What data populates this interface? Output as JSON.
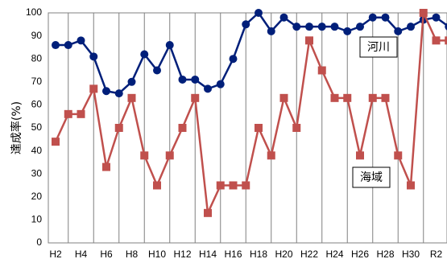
{
  "chart_data": {
    "type": "line",
    "ylabel": "達成率(%)",
    "ylim": [
      0,
      100
    ],
    "y_ticks": [
      0,
      10,
      20,
      30,
      40,
      50,
      60,
      70,
      80,
      90,
      100
    ],
    "x_tick_labels": [
      "H2",
      "H4",
      "H6",
      "H8",
      "H10",
      "H12",
      "H14",
      "H16",
      "H18",
      "H20",
      "H22",
      "H24",
      "H26",
      "H28",
      "H30",
      "R2"
    ],
    "categories": [
      "H2",
      "H3",
      "H4",
      "H5",
      "H6",
      "H7",
      "H8",
      "H9",
      "H10",
      "H11",
      "H12",
      "H13",
      "H14",
      "H15",
      "H16",
      "H17",
      "H18",
      "H19",
      "H20",
      "H21",
      "H22",
      "H23",
      "H24",
      "H25",
      "H26",
      "H27",
      "H28",
      "H29",
      "H30",
      "R1",
      "R2",
      "R3"
    ],
    "grid": "vertical",
    "series": [
      {
        "name": "河川",
        "color": "#001f7a",
        "marker": "circle",
        "values": [
          86,
          86,
          88,
          81,
          66,
          65,
          70,
          82,
          75,
          86,
          71,
          71,
          67,
          69,
          80,
          95,
          100,
          92,
          98,
          94,
          94,
          94,
          94,
          92,
          94,
          98,
          98,
          92,
          94,
          97,
          98,
          94
        ]
      },
      {
        "name": "海域",
        "color": "#c0504d",
        "marker": "square",
        "values": [
          44,
          56,
          56,
          67,
          33,
          50,
          63,
          38,
          25,
          38,
          50,
          63,
          13,
          25,
          25,
          25,
          50,
          38,
          63,
          50,
          88,
          75,
          63,
          63,
          38,
          63,
          63,
          38,
          25,
          100,
          88,
          88
        ]
      }
    ]
  }
}
